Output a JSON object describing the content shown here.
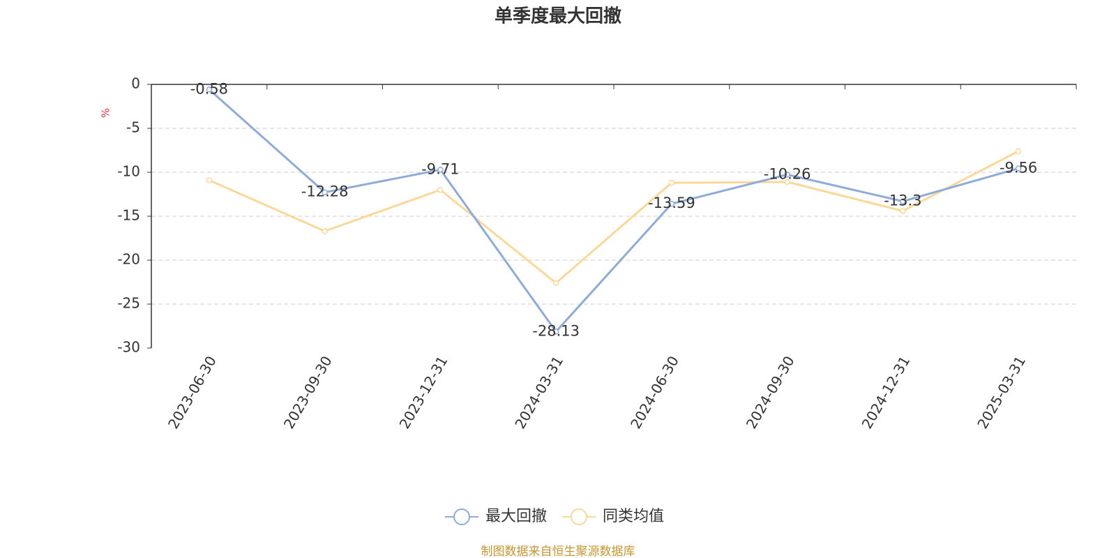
{
  "chart_data": {
    "type": "line",
    "title": "单季度最大回撤",
    "y_label": "%",
    "categories": [
      "2023-06-30",
      "2023-09-30",
      "2023-12-31",
      "2024-03-31",
      "2024-06-30",
      "2024-09-30",
      "2024-12-31",
      "2025-03-31"
    ],
    "series": [
      {
        "name": "最大回撤",
        "color": "#8eacd8",
        "values": [
          -0.58,
          -12.28,
          -9.71,
          -28.13,
          -13.59,
          -10.26,
          -13.3,
          -9.56
        ]
      },
      {
        "name": "同类均值",
        "color": "#fbd898",
        "values": [
          -10.9,
          -16.7,
          -12.0,
          -22.6,
          -11.2,
          -11.1,
          -14.4,
          -7.6
        ]
      }
    ],
    "ylim": [
      -30,
      0
    ],
    "yticks": [
      0,
      -5,
      -10,
      -15,
      -20,
      -25,
      -30
    ],
    "grid": true,
    "source": "制图数据来自恒生聚源数据库"
  }
}
